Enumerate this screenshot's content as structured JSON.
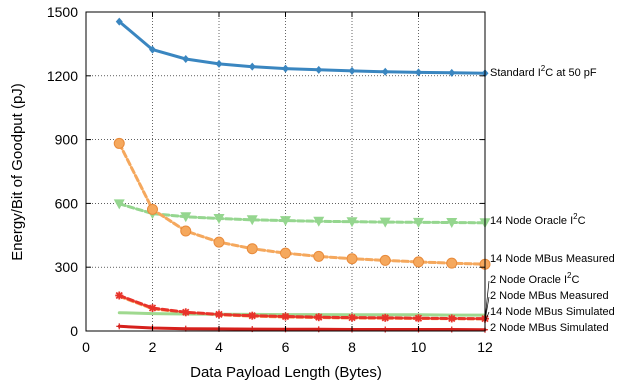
{
  "chart_data": {
    "type": "line",
    "title": "",
    "xlabel": "Data Payload Length (Bytes)",
    "ylabel": "Energy/Bit of Goodput (pJ)",
    "xlim": [
      0,
      12
    ],
    "ylim": [
      0,
      1500
    ],
    "xticks": [
      0,
      2,
      4,
      6,
      8,
      10,
      12
    ],
    "yticks": [
      0,
      300,
      600,
      900,
      1200,
      1500
    ],
    "grid": "dotted",
    "x": [
      1,
      2,
      3,
      4,
      5,
      6,
      7,
      8,
      9,
      10,
      11,
      12
    ],
    "series": [
      {
        "name": "Standard I2C at 50 pF",
        "label_main": "Standard I",
        "label_sup": "2",
        "label_tail": "C at 50 pF",
        "color": "#3a86c0",
        "marker": "diamond",
        "dash": "solid",
        "values": [
          1455,
          1323,
          1279,
          1256,
          1243,
          1234,
          1228,
          1223,
          1219,
          1216,
          1214,
          1212
        ]
      },
      {
        "name": "14 Node Oracle I2C",
        "label_main": "14 Node Oracle I",
        "label_sup": "2",
        "label_tail": "C",
        "color": "#95d68f",
        "marker": "triangle-down",
        "dash": "dashed",
        "values": [
          598,
          552,
          537,
          529,
          523,
          519,
          516,
          514,
          512,
          511,
          510,
          509
        ]
      },
      {
        "name": "14 Node MBus Measured",
        "label_main": "14 Node MBus Measured",
        "label_sup": "",
        "label_tail": "",
        "color": "#f5a85d",
        "marker": "circle",
        "dash": "dashed",
        "values": [
          882,
          572,
          470,
          418,
          387,
          366,
          351,
          340,
          332,
          325,
          319,
          314
        ]
      },
      {
        "name": "2 Node Oracle I2C",
        "label_main": "2 Node Oracle I",
        "label_sup": "2",
        "label_tail": "C",
        "color": "#9fd98f",
        "marker": "none",
        "dash": "solid",
        "values": [
          86,
          82,
          80,
          79,
          78,
          77,
          77,
          76,
          76,
          76,
          75,
          75
        ]
      },
      {
        "name": "2 Node MBus Measured",
        "label_main": "2 Node MBus Measured",
        "label_sup": "",
        "label_tail": "",
        "color": "#e8332a",
        "marker": "asterisk",
        "dash": "dashed",
        "values": [
          167,
          108,
          88,
          78,
          72,
          68,
          65,
          63,
          62,
          60,
          59,
          58
        ]
      },
      {
        "name": "14 Node MBus Simulated",
        "label_main": "14 Node MBus Simulated",
        "label_sup": "",
        "label_tail": "",
        "color": "#f5a85d",
        "marker": "none",
        "dash": "dashed",
        "values": [
          163,
          105,
          86,
          76,
          70,
          66,
          63,
          61,
          60,
          59,
          58,
          57
        ]
      },
      {
        "name": "2 Node MBus Simulated",
        "label_main": "2 Node MBus Simulated",
        "label_sup": "",
        "label_tail": "",
        "color": "#d6201c",
        "marker": "plus",
        "dash": "solid",
        "values": [
          22,
          14,
          11,
          10,
          9,
          8,
          8,
          7,
          7,
          7,
          7,
          6
        ]
      }
    ]
  }
}
